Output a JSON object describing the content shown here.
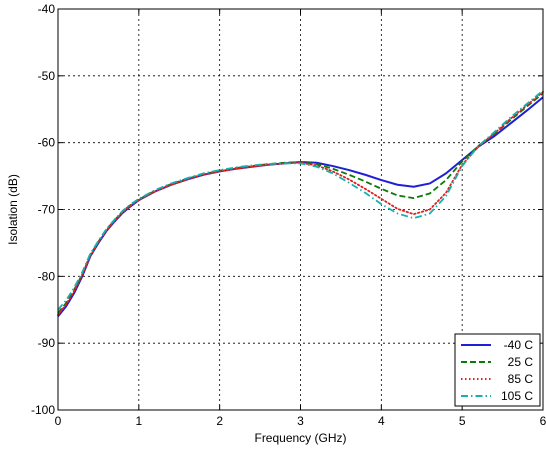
{
  "chart_data": {
    "type": "line",
    "title": "",
    "xlabel": "Frequency (GHz)",
    "ylabel": "Isolation (dB)",
    "xlim": [
      0,
      6
    ],
    "ylim": [
      -100,
      -40
    ],
    "xticks": [
      0,
      1,
      2,
      3,
      4,
      5,
      6
    ],
    "yticks": [
      -100,
      -90,
      -80,
      -70,
      -60,
      -50,
      -40
    ],
    "xtick_labels": [
      "0",
      "1",
      "2",
      "3",
      "4",
      "5",
      "6"
    ],
    "ytick_labels": [
      "-100",
      "-90",
      "-80",
      "-70",
      "-60",
      "-50",
      "-40"
    ],
    "grid": true,
    "legend_position": "bottom-right",
    "series": [
      {
        "name": "-40 C",
        "color": "#1f1fd6",
        "style": "solid",
        "x": [
          0,
          0.1,
          0.2,
          0.3,
          0.4,
          0.5,
          0.6,
          0.7,
          0.8,
          0.9,
          1.0,
          1.2,
          1.4,
          1.6,
          1.8,
          2.0,
          2.2,
          2.4,
          2.6,
          2.8,
          3.0,
          3.2,
          3.4,
          3.6,
          3.8,
          4.0,
          4.2,
          4.4,
          4.6,
          4.8,
          5.0,
          5.2,
          5.4,
          5.6,
          5.8,
          6.0
        ],
        "y": [
          -86.0,
          -84.5,
          -82.5,
          -80.0,
          -77.0,
          -75.0,
          -73.2,
          -71.8,
          -70.5,
          -69.5,
          -68.6,
          -67.3,
          -66.3,
          -65.5,
          -64.8,
          -64.3,
          -63.9,
          -63.6,
          -63.3,
          -63.1,
          -62.9,
          -63.0,
          -63.5,
          -64.1,
          -64.8,
          -65.6,
          -66.3,
          -66.6,
          -66.1,
          -64.6,
          -62.6,
          -60.6,
          -59.0,
          -57.1,
          -55.2,
          -53.2
        ]
      },
      {
        "name": "25 C",
        "color": "#0a7a0a",
        "style": "dashed",
        "x": [
          0,
          0.1,
          0.2,
          0.3,
          0.4,
          0.5,
          0.6,
          0.7,
          0.8,
          0.9,
          1.0,
          1.2,
          1.4,
          1.6,
          1.8,
          2.0,
          2.2,
          2.4,
          2.6,
          2.8,
          3.0,
          3.2,
          3.4,
          3.6,
          3.8,
          4.0,
          4.2,
          4.4,
          4.6,
          4.8,
          5.0,
          5.2,
          5.4,
          5.6,
          5.8,
          6.0
        ],
        "y": [
          -85.5,
          -84.0,
          -82.0,
          -79.7,
          -76.8,
          -74.8,
          -73.0,
          -71.6,
          -70.3,
          -69.3,
          -68.5,
          -67.2,
          -66.2,
          -65.4,
          -64.7,
          -64.2,
          -63.8,
          -63.5,
          -63.2,
          -63.0,
          -62.9,
          -63.2,
          -63.9,
          -64.8,
          -65.8,
          -66.9,
          -67.9,
          -68.3,
          -67.6,
          -65.6,
          -62.8,
          -60.5,
          -58.7,
          -56.6,
          -54.6,
          -52.6
        ]
      },
      {
        "name": "85 C",
        "color": "#e02020",
        "style": "dotted",
        "x": [
          0,
          0.1,
          0.2,
          0.3,
          0.4,
          0.5,
          0.6,
          0.7,
          0.8,
          0.9,
          1.0,
          1.2,
          1.4,
          1.6,
          1.8,
          2.0,
          2.2,
          2.4,
          2.6,
          2.8,
          3.0,
          3.2,
          3.4,
          3.6,
          3.8,
          4.0,
          4.2,
          4.4,
          4.6,
          4.8,
          5.0,
          5.2,
          5.4,
          5.6,
          5.8,
          6.0
        ],
        "y": [
          -85.8,
          -84.2,
          -82.2,
          -79.8,
          -76.9,
          -74.9,
          -73.1,
          -71.7,
          -70.4,
          -69.4,
          -68.6,
          -67.3,
          -66.3,
          -65.5,
          -64.8,
          -64.3,
          -63.9,
          -63.6,
          -63.3,
          -63.1,
          -63.0,
          -63.4,
          -64.3,
          -65.5,
          -66.9,
          -68.4,
          -69.9,
          -70.7,
          -70.0,
          -67.5,
          -63.3,
          -60.6,
          -58.6,
          -56.4,
          -54.4,
          -52.4
        ]
      },
      {
        "name": "105 C",
        "color": "#17b0b0",
        "style": "dashdot",
        "x": [
          0,
          0.1,
          0.2,
          0.3,
          0.4,
          0.5,
          0.6,
          0.7,
          0.8,
          0.9,
          1.0,
          1.2,
          1.4,
          1.6,
          1.8,
          2.0,
          2.2,
          2.4,
          2.6,
          2.8,
          3.0,
          3.2,
          3.4,
          3.6,
          3.8,
          4.0,
          4.2,
          4.4,
          4.6,
          4.8,
          5.0,
          5.2,
          5.4,
          5.6,
          5.8,
          6.0
        ],
        "y": [
          -85.0,
          -83.6,
          -81.7,
          -79.4,
          -76.6,
          -74.7,
          -72.9,
          -71.5,
          -70.2,
          -69.2,
          -68.4,
          -67.1,
          -66.1,
          -65.3,
          -64.6,
          -64.1,
          -63.7,
          -63.4,
          -63.2,
          -63.1,
          -63.1,
          -63.6,
          -64.6,
          -66.0,
          -67.5,
          -69.2,
          -70.6,
          -71.3,
          -70.6,
          -68.0,
          -63.5,
          -60.5,
          -58.4,
          -56.2,
          -54.2,
          -52.2
        ]
      }
    ]
  }
}
